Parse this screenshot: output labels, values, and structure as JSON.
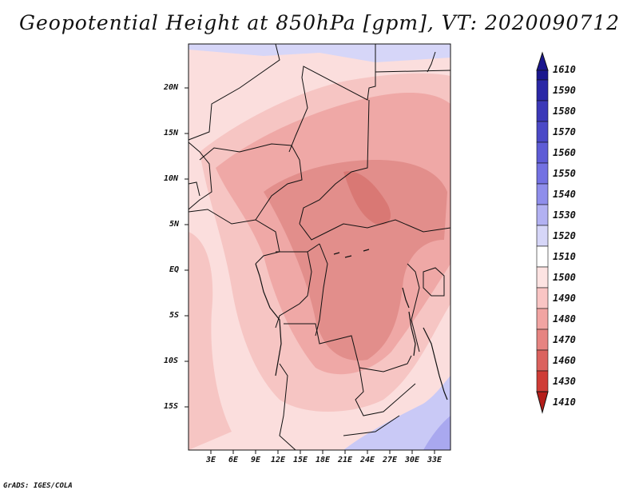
{
  "title": "Geopotential Height at 850hPa [gpm], VT: 2020090712",
  "footer": "GrADS: IGES/COLA",
  "lat_labels": [
    "20N",
    "15N",
    "10N",
    "5N",
    "EQ",
    "5S",
    "10S",
    "15S"
  ],
  "lon_labels": [
    "3E",
    "6E",
    "9E",
    "12E",
    "15E",
    "18E",
    "21E",
    "24E",
    "27E",
    "30E",
    "33E"
  ],
  "colorbar": {
    "levels": [
      "1610",
      "1590",
      "1580",
      "1570",
      "1560",
      "1550",
      "1540",
      "1530",
      "1520",
      "1510",
      "1500",
      "1490",
      "1480",
      "1470",
      "1460",
      "1430",
      "1410"
    ],
    "colors": [
      "#1a168e",
      "#2a27a6",
      "#3b38b8",
      "#4b49c7",
      "#5e5cd6",
      "#7371e2",
      "#8f8eeb",
      "#b2b1f2",
      "#d6d6f8",
      "#ffffff",
      "#fde3e2",
      "#f9c5c4",
      "#f1a4a2",
      "#e68481",
      "#db625e",
      "#cf3c36",
      "#b41d1a"
    ]
  },
  "colors": {
    "field_high_blue": "#c9c9f6",
    "field_light_pink": "#fbdedd",
    "field_pink": "#f6c5c3",
    "field_mid": "#efa8a6",
    "field_deep": "#e28e8b"
  }
}
